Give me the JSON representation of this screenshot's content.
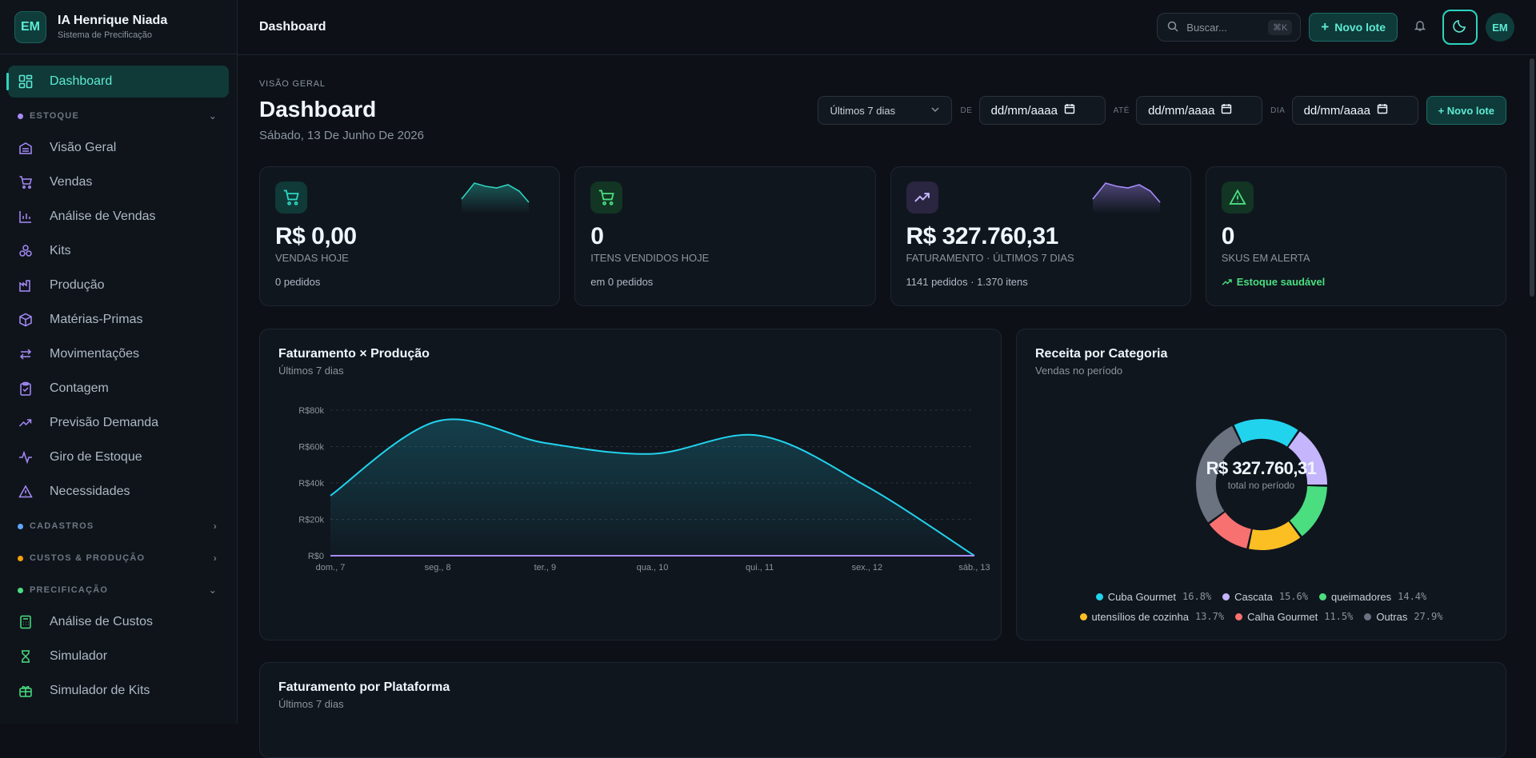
{
  "brand": {
    "logo": "EM",
    "name": "IA Henrique Niada",
    "subtitle": "Sistema de Precificação"
  },
  "sidebar": {
    "dashboard": "Dashboard",
    "estoque": {
      "label": "ESTOQUE",
      "color": "#a78bfa",
      "items": [
        "Visão Geral",
        "Vendas",
        "Análise de Vendas",
        "Kits",
        "Produção",
        "Matérias-Primas",
        "Movimentações",
        "Contagem",
        "Previsão Demanda",
        "Giro de Estoque",
        "Necessidades"
      ]
    },
    "cadastros": {
      "label": "CADASTROS",
      "color": "#60a5fa"
    },
    "custos": {
      "label": "CUSTOS & PRODUÇÃO",
      "color": "#f59e0b"
    },
    "precificacao": {
      "label": "PRECIFICAÇÃO",
      "color": "#4ade80",
      "items": [
        "Análise de Custos",
        "Simulador",
        "Simulador de Kits"
      ]
    }
  },
  "topbar": {
    "title": "Dashboard",
    "search_placeholder": "Buscar...",
    "shortcut": "⌘K",
    "new_button": "Novo lote",
    "avatar": "EM"
  },
  "header": {
    "eyebrow": "VISÃO GERAL",
    "title": "Dashboard",
    "date": "Sábado, 13 De Junho De 2026",
    "period": "Últimos 7 dias",
    "label_de": "DE",
    "label_ate": "ATÉ",
    "label_dia": "DIA",
    "date_placeholder": "dd/mm/aaaa",
    "new_button": "+ Novo lote"
  },
  "kpis": [
    {
      "value": "R$ 0,00",
      "label": "VENDAS HOJE",
      "sub": "0 pedidos",
      "color": "#2dd4bf"
    },
    {
      "value": "0",
      "label": "ITENS VENDIDOS HOJE",
      "sub": "em 0 pedidos",
      "color": "#4ade80"
    },
    {
      "value": "R$ 327.760,31",
      "label": "FATURAMENTO · ÚLTIMOS 7 DIAS",
      "sub": "1141 pedidos · 1.370 itens",
      "color": "#a78bfa"
    },
    {
      "value": "0",
      "label": "SKUS EM ALERTA",
      "sub": "Estoque saudável",
      "color": "#4ade80"
    }
  ],
  "revenue_chart": {
    "title": "Faturamento × Produção",
    "subtitle": "Últimos 7 dias"
  },
  "category_chart": {
    "title": "Receita por Categoria",
    "subtitle": "Vendas no período",
    "total": "R$ 327.760,31",
    "total_label": "total no período"
  },
  "platform_chart": {
    "title": "Faturamento por Plataforma",
    "subtitle": "Últimos 7 dias"
  },
  "chart_data": [
    {
      "type": "area",
      "title": "Faturamento × Produção",
      "categories": [
        "dom., 7",
        "seg., 8",
        "ter., 9",
        "qua., 10",
        "qui., 11",
        "sex., 12",
        "sáb., 13"
      ],
      "yticks": [
        "R$0",
        "R$20k",
        "R$40k",
        "R$60k",
        "R$80k"
      ],
      "ylim": [
        0,
        80000
      ],
      "grid": true,
      "series": [
        {
          "values": [
            33000,
            74000,
            62000,
            56000,
            66000,
            38000,
            0
          ],
          "color": "#22d3ee"
        },
        {
          "values": [
            0,
            0,
            0,
            0,
            0,
            0,
            0
          ],
          "color": "#a78bfa"
        }
      ]
    },
    {
      "type": "pie",
      "title": "Receita por Categoria",
      "slices": [
        {
          "label": "Cuba Gourmet",
          "value": 16.8,
          "pct": "16.8%",
          "color": "#22d3ee"
        },
        {
          "label": "Cascata",
          "value": 15.6,
          "pct": "15.6%",
          "color": "#c4b5fd"
        },
        {
          "label": "queimadores",
          "value": 14.4,
          "pct": "14.4%",
          "color": "#4ade80"
        },
        {
          "label": "utensílios de cozinha",
          "value": 13.7,
          "pct": "13.7%",
          "color": "#fbbf24"
        },
        {
          "label": "Calha Gourmet",
          "value": 11.5,
          "pct": "11.5%",
          "color": "#f87171"
        },
        {
          "label": "Outras",
          "value": 27.9,
          "pct": "27.9%",
          "color": "#6b7280"
        }
      ]
    }
  ]
}
